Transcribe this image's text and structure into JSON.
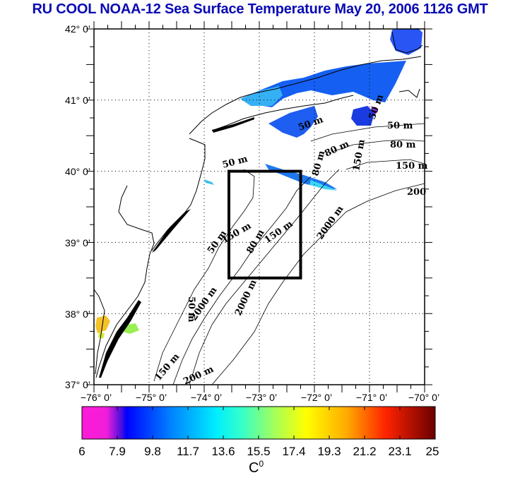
{
  "title": "RU COOL  NOAA-12 Sea Surface Temperature May 20, 2006 1126 GMT",
  "map": {
    "type": "sea-surface-temperature",
    "lon_range": [
      -76,
      -70
    ],
    "lat_range": [
      37,
      42
    ],
    "lon_ticks": [
      "−76° 0’",
      "−75° 0’",
      "−74° 0’",
      "−73° 0’",
      "−72° 0’",
      "−71° 0’",
      "−70° 0’"
    ],
    "lat_ticks": [
      "42° 0’",
      "41° 0’",
      "40° 0’",
      "39° 0’",
      "38° 0’",
      "37° 0’"
    ],
    "lon_tick_values": [
      -76,
      -75,
      -74,
      -73,
      -72,
      -71,
      -70
    ],
    "lat_tick_values": [
      42,
      41,
      40,
      39,
      38,
      37
    ],
    "study_box": {
      "lon": [
        -73.5,
        -72.25
      ],
      "lat": [
        38.5,
        40
      ]
    },
    "contour_labels": [
      "50 m",
      "80 m",
      "150 m",
      "200",
      "2000 m",
      "50 m",
      "80 m",
      "150 m",
      "50 m",
      "50 m",
      "80 m",
      "150 m",
      "50 m",
      "80 m",
      "150 m",
      "2000 m",
      "150 m",
      "200 m",
      "2000 m",
      "50 m"
    ]
  },
  "colorbar": {
    "ticks": [
      "6",
      "7.9",
      "9.8",
      "11.7",
      "13.6",
      "15.5",
      "17.4",
      "19.3",
      "21.2",
      "23.1",
      "25"
    ],
    "unit": "C",
    "unit_sup": "0",
    "range": [
      6,
      25
    ],
    "colors": [
      "#ff1ad9",
      "#e21ee0",
      "#3a0de0",
      "#0000ff",
      "#0066ff",
      "#00ccff",
      "#11ffee",
      "#77ff99",
      "#ccff55",
      "#ffff00",
      "#ffaa00",
      "#ff6600",
      "#ff1100",
      "#cc0000",
      "#7a0000"
    ]
  },
  "colors": {
    "title": "#0a0ab4"
  }
}
